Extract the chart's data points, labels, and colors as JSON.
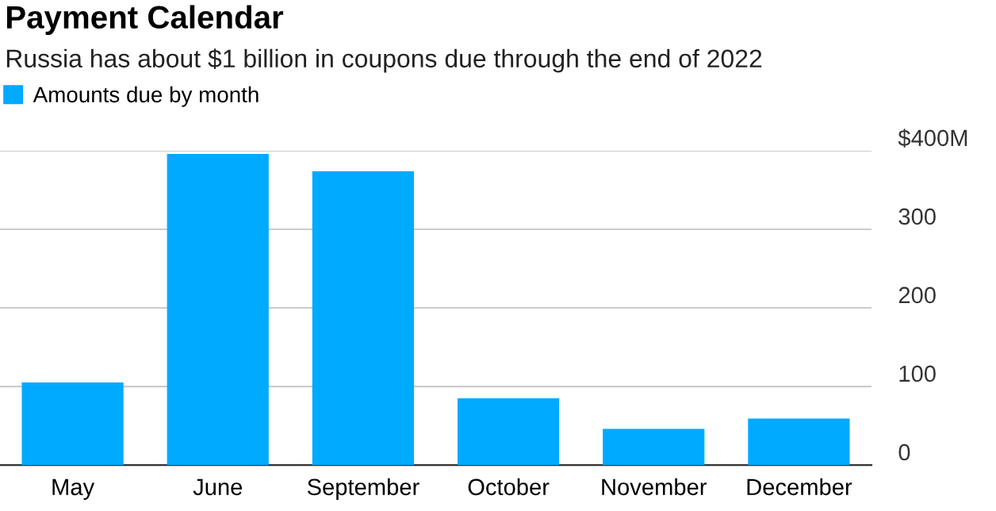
{
  "chart_data": {
    "type": "bar",
    "title": "Payment Calendar",
    "subtitle": "Russia has about $1 billion in coupons due through the end of 2022",
    "categories": [
      "May",
      "June",
      "September",
      "October",
      "November",
      "December"
    ],
    "series": [
      {
        "name": "Amounts due by month",
        "color": "#00aaff",
        "values": [
          105,
          396,
          374,
          85,
          46,
          59
        ]
      }
    ],
    "ylim": [
      0,
      400
    ],
    "yticks": [
      0,
      100,
      200,
      300,
      {
        "value": 400,
        "label": "$400M"
      }
    ],
    "grid": "y",
    "legend": "top left"
  }
}
